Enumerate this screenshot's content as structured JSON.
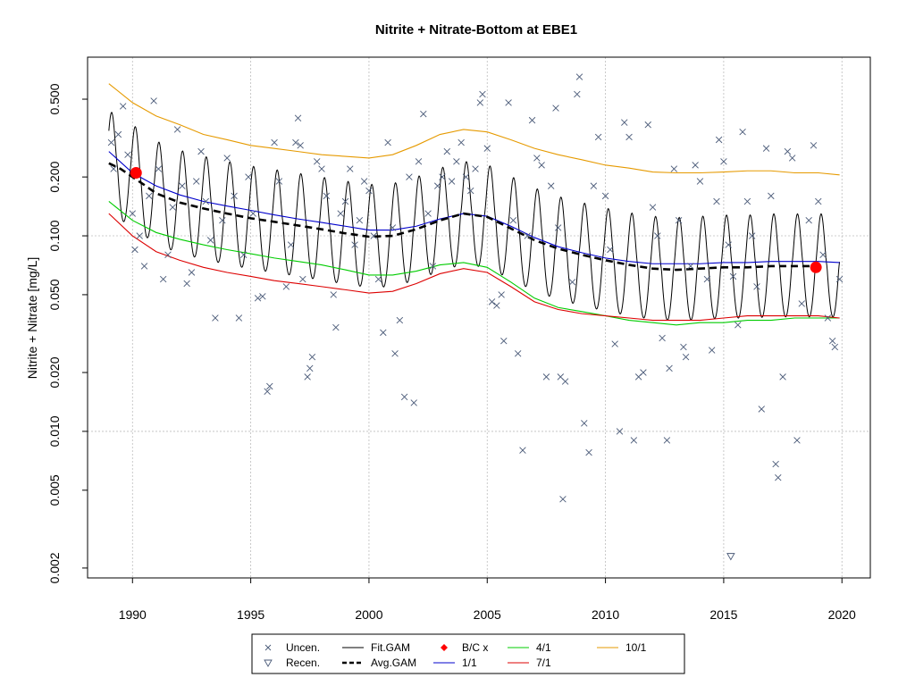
{
  "chart_data": {
    "type": "line",
    "title": "Nitrite + Nitrate-Bottom at EBE1",
    "xlabel": "",
    "ylabel": "Nitrite + Nitrate [mg/L]",
    "y_scale": "log",
    "xlim": [
      1988.1,
      2021.2
    ],
    "ylim": [
      0.00178,
      0.82
    ],
    "x_ticks": [
      1990,
      1995,
      2000,
      2005,
      2010,
      2015,
      2020
    ],
    "x_tick_labels": [
      "1990",
      "1995",
      "2000",
      "2005",
      "2010",
      "2015",
      "2020"
    ],
    "y_ticks": [
      0.002,
      0.005,
      0.01,
      0.02,
      0.05,
      0.1,
      0.2,
      0.5
    ],
    "y_tick_labels": [
      "0.002",
      "0.005",
      "0.010",
      "0.020",
      "0.050",
      "0.100",
      "0.200",
      "0.500"
    ],
    "grid": true,
    "legend_position": "bottom",
    "colors": {
      "uncen": "#4a5a78",
      "fit_gam": "#000000",
      "avg_gam": "#000000",
      "bc": "#ff0000",
      "d1_1": "#0000cc",
      "d4_1": "#00cc00",
      "d7_1": "#dd0000",
      "d10_1": "#e69a00",
      "grid": "#bdbdbd"
    },
    "legend": [
      {
        "key": "uncen",
        "label": "Uncen.",
        "symbol": "x"
      },
      {
        "key": "fit_gam",
        "label": "Fit.GAM",
        "symbol": "line"
      },
      {
        "key": "bc",
        "label": "B/C x",
        "symbol": "diamond"
      },
      {
        "key": "d4_1",
        "label": "4/1",
        "symbol": "line"
      },
      {
        "key": "d10_1",
        "label": "10/1",
        "symbol": "line"
      },
      {
        "key": "recen",
        "label": "Recen.",
        "symbol": "triangle"
      },
      {
        "key": "avg_gam",
        "label": "Avg.GAM",
        "symbol": "dashed"
      },
      {
        "key": "d1_1",
        "label": "1/1",
        "symbol": "line"
      },
      {
        "key": "d7_1",
        "label": "7/1",
        "symbol": "line"
      }
    ],
    "series": [
      {
        "name": "10/1",
        "color_key": "d10_1",
        "x": [
          1989,
          1990,
          1991,
          1992,
          1993,
          1994,
          1995,
          1996,
          1997,
          1998,
          1999,
          2000,
          2001,
          2002,
          2003,
          2004,
          2005,
          2006,
          2007,
          2008,
          2009,
          2010,
          2011,
          2012,
          2013,
          2014,
          2015,
          2016,
          2017,
          2018,
          2019,
          2019.9
        ],
        "y": [
          0.6,
          0.48,
          0.41,
          0.37,
          0.33,
          0.31,
          0.29,
          0.28,
          0.27,
          0.26,
          0.255,
          0.25,
          0.26,
          0.29,
          0.33,
          0.35,
          0.34,
          0.31,
          0.28,
          0.26,
          0.245,
          0.23,
          0.222,
          0.212,
          0.21,
          0.21,
          0.212,
          0.215,
          0.215,
          0.21,
          0.21,
          0.205
        ]
      },
      {
        "name": "1/1",
        "color_key": "d1_1",
        "x": [
          1989,
          1990,
          1991,
          1992,
          1993,
          1994,
          1995,
          1996,
          1997,
          1998,
          1999,
          2000,
          2001,
          2002,
          2003,
          2004,
          2005,
          2006,
          2007,
          2008,
          2009,
          2010,
          2011,
          2012,
          2013,
          2014,
          2015,
          2016,
          2017,
          2018,
          2019,
          2019.9
        ],
        "y": [
          0.27,
          0.21,
          0.18,
          0.162,
          0.15,
          0.142,
          0.135,
          0.128,
          0.122,
          0.117,
          0.112,
          0.107,
          0.107,
          0.112,
          0.122,
          0.13,
          0.126,
          0.112,
          0.098,
          0.088,
          0.082,
          0.077,
          0.074,
          0.072,
          0.072,
          0.072,
          0.073,
          0.073,
          0.074,
          0.074,
          0.074,
          0.073
        ]
      },
      {
        "name": "4/1",
        "color_key": "d4_1",
        "x": [
          1989,
          1990,
          1991,
          1992,
          1993,
          1994,
          1995,
          1996,
          1997,
          1998,
          1999,
          2000,
          2001,
          2002,
          2003,
          2004,
          2005,
          2006,
          2007,
          2008,
          2009,
          2010,
          2011,
          2012,
          2013,
          2014,
          2015,
          2016,
          2017,
          2018,
          2019,
          2019.9
        ],
        "y": [
          0.15,
          0.12,
          0.104,
          0.096,
          0.09,
          0.085,
          0.081,
          0.077,
          0.074,
          0.071,
          0.067,
          0.063,
          0.063,
          0.066,
          0.071,
          0.073,
          0.069,
          0.058,
          0.048,
          0.043,
          0.041,
          0.039,
          0.037,
          0.036,
          0.035,
          0.036,
          0.036,
          0.037,
          0.037,
          0.038,
          0.038,
          0.038
        ]
      },
      {
        "name": "7/1",
        "color_key": "d7_1",
        "x": [
          1989,
          1990,
          1991,
          1992,
          1993,
          1994,
          1995,
          1996,
          1997,
          1998,
          1999,
          2000,
          2001,
          2002,
          2003,
          2004,
          2005,
          2006,
          2007,
          2008,
          2009,
          2010,
          2011,
          2012,
          2013,
          2014,
          2015,
          2016,
          2017,
          2018,
          2019,
          2019.9
        ],
        "y": [
          0.13,
          0.1,
          0.083,
          0.075,
          0.069,
          0.065,
          0.062,
          0.059,
          0.057,
          0.055,
          0.053,
          0.051,
          0.052,
          0.057,
          0.064,
          0.068,
          0.065,
          0.055,
          0.046,
          0.042,
          0.04,
          0.039,
          0.038,
          0.037,
          0.037,
          0.037,
          0.038,
          0.039,
          0.039,
          0.039,
          0.039,
          0.038
        ]
      }
    ],
    "avg_gam": {
      "name": "Avg.GAM",
      "x": [
        1989,
        1989.5,
        1990,
        1990.5,
        1991,
        1992,
        1993,
        1994,
        1995,
        1996,
        1997,
        1998,
        1999,
        2000,
        2001,
        2002,
        2003,
        2004,
        2005,
        2006,
        2007,
        2008,
        2009,
        2010,
        2011,
        2012,
        2013,
        2014,
        2015,
        2016,
        2017,
        2018,
        2019
      ],
      "y": [
        0.235,
        0.22,
        0.2,
        0.182,
        0.165,
        0.148,
        0.138,
        0.13,
        0.123,
        0.118,
        0.113,
        0.108,
        0.103,
        0.099,
        0.1,
        0.108,
        0.12,
        0.13,
        0.125,
        0.109,
        0.095,
        0.086,
        0.08,
        0.075,
        0.071,
        0.068,
        0.067,
        0.068,
        0.069,
        0.069,
        0.07,
        0.07,
        0.07
      ]
    },
    "fit_gam": {
      "name": "Fit.GAM",
      "x_start": 1989.0,
      "x_end": 2019.9,
      "period_years": 1.0,
      "peak_phase": 0.12,
      "peak_mult": 1.85,
      "trough_mult": 0.55,
      "baseline": "avg_gam"
    },
    "bc_points": [
      {
        "x": 1990.15,
        "y": 0.21
      },
      {
        "x": 2018.9,
        "y": 0.069
      }
    ],
    "uncen_points": [
      {
        "x": 1989.1,
        "y": 0.3
      },
      {
        "x": 1989.2,
        "y": 0.22
      },
      {
        "x": 1989.4,
        "y": 0.33
      },
      {
        "x": 1989.6,
        "y": 0.46
      },
      {
        "x": 1989.8,
        "y": 0.26
      },
      {
        "x": 1990.0,
        "y": 0.13
      },
      {
        "x": 1990.1,
        "y": 0.085
      },
      {
        "x": 1990.3,
        "y": 0.1
      },
      {
        "x": 1990.5,
        "y": 0.07
      },
      {
        "x": 1990.7,
        "y": 0.16
      },
      {
        "x": 1990.9,
        "y": 0.49
      },
      {
        "x": 1991.1,
        "y": 0.22
      },
      {
        "x": 1991.3,
        "y": 0.06
      },
      {
        "x": 1991.5,
        "y": 0.08
      },
      {
        "x": 1991.7,
        "y": 0.14
      },
      {
        "x": 1991.9,
        "y": 0.35
      },
      {
        "x": 1992.1,
        "y": 0.18
      },
      {
        "x": 1992.3,
        "y": 0.057
      },
      {
        "x": 1992.5,
        "y": 0.065
      },
      {
        "x": 1992.7,
        "y": 0.19
      },
      {
        "x": 1992.9,
        "y": 0.27
      },
      {
        "x": 1993.1,
        "y": 0.15
      },
      {
        "x": 1993.3,
        "y": 0.095
      },
      {
        "x": 1993.5,
        "y": 0.038
      },
      {
        "x": 1993.8,
        "y": 0.12
      },
      {
        "x": 1994.0,
        "y": 0.25
      },
      {
        "x": 1994.3,
        "y": 0.16
      },
      {
        "x": 1994.5,
        "y": 0.038
      },
      {
        "x": 1994.7,
        "y": 0.08
      },
      {
        "x": 1994.9,
        "y": 0.2
      },
      {
        "x": 1995.1,
        "y": 0.13
      },
      {
        "x": 1995.3,
        "y": 0.048
      },
      {
        "x": 1995.5,
        "y": 0.049
      },
      {
        "x": 1995.7,
        "y": 0.016
      },
      {
        "x": 1995.8,
        "y": 0.017
      },
      {
        "x": 1996.0,
        "y": 0.3
      },
      {
        "x": 1996.2,
        "y": 0.19
      },
      {
        "x": 1996.5,
        "y": 0.055
      },
      {
        "x": 1996.7,
        "y": 0.09
      },
      {
        "x": 1996.9,
        "y": 0.3
      },
      {
        "x": 1997.0,
        "y": 0.4
      },
      {
        "x": 1997.1,
        "y": 0.29
      },
      {
        "x": 1997.2,
        "y": 0.06
      },
      {
        "x": 1997.4,
        "y": 0.019
      },
      {
        "x": 1997.5,
        "y": 0.021
      },
      {
        "x": 1997.6,
        "y": 0.024
      },
      {
        "x": 1997.8,
        "y": 0.24
      },
      {
        "x": 1998.0,
        "y": 0.22
      },
      {
        "x": 1998.2,
        "y": 0.16
      },
      {
        "x": 1998.5,
        "y": 0.05
      },
      {
        "x": 1998.6,
        "y": 0.034
      },
      {
        "x": 1998.8,
        "y": 0.13
      },
      {
        "x": 1999.0,
        "y": 0.15
      },
      {
        "x": 1999.2,
        "y": 0.22
      },
      {
        "x": 1999.4,
        "y": 0.09
      },
      {
        "x": 1999.6,
        "y": 0.12
      },
      {
        "x": 1999.8,
        "y": 0.19
      },
      {
        "x": 2000.0,
        "y": 0.17
      },
      {
        "x": 2000.2,
        "y": 0.1
      },
      {
        "x": 2000.4,
        "y": 0.06
      },
      {
        "x": 2000.6,
        "y": 0.032
      },
      {
        "x": 2000.8,
        "y": 0.3
      },
      {
        "x": 2001.0,
        "y": 0.11
      },
      {
        "x": 2001.1,
        "y": 0.025
      },
      {
        "x": 2001.3,
        "y": 0.037
      },
      {
        "x": 2001.5,
        "y": 0.015
      },
      {
        "x": 2001.7,
        "y": 0.2
      },
      {
        "x": 2001.9,
        "y": 0.014
      },
      {
        "x": 2002.1,
        "y": 0.24
      },
      {
        "x": 2002.3,
        "y": 0.42
      },
      {
        "x": 2002.5,
        "y": 0.13
      },
      {
        "x": 2002.7,
        "y": 0.07
      },
      {
        "x": 2002.9,
        "y": 0.18
      },
      {
        "x": 2003.1,
        "y": 0.2
      },
      {
        "x": 2003.3,
        "y": 0.27
      },
      {
        "x": 2003.5,
        "y": 0.19
      },
      {
        "x": 2003.7,
        "y": 0.24
      },
      {
        "x": 2003.9,
        "y": 0.3
      },
      {
        "x": 2004.1,
        "y": 0.2
      },
      {
        "x": 2004.3,
        "y": 0.17
      },
      {
        "x": 2004.5,
        "y": 0.22
      },
      {
        "x": 2004.7,
        "y": 0.48
      },
      {
        "x": 2004.8,
        "y": 0.53
      },
      {
        "x": 2005.0,
        "y": 0.28
      },
      {
        "x": 2005.2,
        "y": 0.046
      },
      {
        "x": 2005.4,
        "y": 0.044
      },
      {
        "x": 2005.6,
        "y": 0.05
      },
      {
        "x": 2005.7,
        "y": 0.029
      },
      {
        "x": 2005.9,
        "y": 0.48
      },
      {
        "x": 2006.1,
        "y": 0.12
      },
      {
        "x": 2006.3,
        "y": 0.025
      },
      {
        "x": 2006.5,
        "y": 0.008
      },
      {
        "x": 2006.7,
        "y": 0.1
      },
      {
        "x": 2006.9,
        "y": 0.39
      },
      {
        "x": 2007.1,
        "y": 0.25
      },
      {
        "x": 2007.3,
        "y": 0.23
      },
      {
        "x": 2007.5,
        "y": 0.019
      },
      {
        "x": 2007.7,
        "y": 0.18
      },
      {
        "x": 2007.9,
        "y": 0.45
      },
      {
        "x": 2008.0,
        "y": 0.11
      },
      {
        "x": 2008.1,
        "y": 0.019
      },
      {
        "x": 2008.2,
        "y": 0.0045
      },
      {
        "x": 2008.3,
        "y": 0.018
      },
      {
        "x": 2008.6,
        "y": 0.058
      },
      {
        "x": 2008.8,
        "y": 0.53
      },
      {
        "x": 2008.9,
        "y": 0.65
      },
      {
        "x": 2009.1,
        "y": 0.011
      },
      {
        "x": 2009.3,
        "y": 0.0078
      },
      {
        "x": 2009.5,
        "y": 0.18
      },
      {
        "x": 2009.7,
        "y": 0.32
      },
      {
        "x": 2010.0,
        "y": 0.16
      },
      {
        "x": 2010.2,
        "y": 0.085
      },
      {
        "x": 2010.4,
        "y": 0.028
      },
      {
        "x": 2010.6,
        "y": 0.01
      },
      {
        "x": 2010.8,
        "y": 0.38
      },
      {
        "x": 2011.0,
        "y": 0.32
      },
      {
        "x": 2011.2,
        "y": 0.009
      },
      {
        "x": 2011.4,
        "y": 0.019
      },
      {
        "x": 2011.6,
        "y": 0.02
      },
      {
        "x": 2011.8,
        "y": 0.37
      },
      {
        "x": 2012.0,
        "y": 0.14
      },
      {
        "x": 2012.2,
        "y": 0.1
      },
      {
        "x": 2012.4,
        "y": 0.03
      },
      {
        "x": 2012.6,
        "y": 0.009
      },
      {
        "x": 2012.7,
        "y": 0.021
      },
      {
        "x": 2012.9,
        "y": 0.22
      },
      {
        "x": 2013.1,
        "y": 0.12
      },
      {
        "x": 2013.3,
        "y": 0.027
      },
      {
        "x": 2013.4,
        "y": 0.024
      },
      {
        "x": 2013.6,
        "y": 0.07
      },
      {
        "x": 2013.8,
        "y": 0.23
      },
      {
        "x": 2014.0,
        "y": 0.19
      },
      {
        "x": 2014.3,
        "y": 0.06
      },
      {
        "x": 2014.5,
        "y": 0.026
      },
      {
        "x": 2014.7,
        "y": 0.15
      },
      {
        "x": 2014.8,
        "y": 0.31
      },
      {
        "x": 2015.0,
        "y": 0.24
      },
      {
        "x": 2015.2,
        "y": 0.09
      },
      {
        "x": 2015.4,
        "y": 0.062
      },
      {
        "x": 2015.6,
        "y": 0.035
      },
      {
        "x": 2015.8,
        "y": 0.34
      },
      {
        "x": 2016.0,
        "y": 0.15
      },
      {
        "x": 2016.2,
        "y": 0.1
      },
      {
        "x": 2016.4,
        "y": 0.055
      },
      {
        "x": 2016.6,
        "y": 0.013
      },
      {
        "x": 2016.8,
        "y": 0.28
      },
      {
        "x": 2017.0,
        "y": 0.16
      },
      {
        "x": 2017.2,
        "y": 0.0068
      },
      {
        "x": 2017.3,
        "y": 0.0058
      },
      {
        "x": 2017.5,
        "y": 0.019
      },
      {
        "x": 2017.7,
        "y": 0.27
      },
      {
        "x": 2017.9,
        "y": 0.25
      },
      {
        "x": 2018.1,
        "y": 0.009
      },
      {
        "x": 2018.3,
        "y": 0.045
      },
      {
        "x": 2018.6,
        "y": 0.12
      },
      {
        "x": 2018.8,
        "y": 0.29
      },
      {
        "x": 2019.0,
        "y": 0.15
      },
      {
        "x": 2019.2,
        "y": 0.08
      },
      {
        "x": 2019.4,
        "y": 0.038
      },
      {
        "x": 2019.6,
        "y": 0.029
      },
      {
        "x": 2019.7,
        "y": 0.027
      },
      {
        "x": 2019.9,
        "y": 0.06
      }
    ],
    "recen_points": [
      {
        "x": 2015.3,
        "y": 0.0023
      }
    ]
  }
}
